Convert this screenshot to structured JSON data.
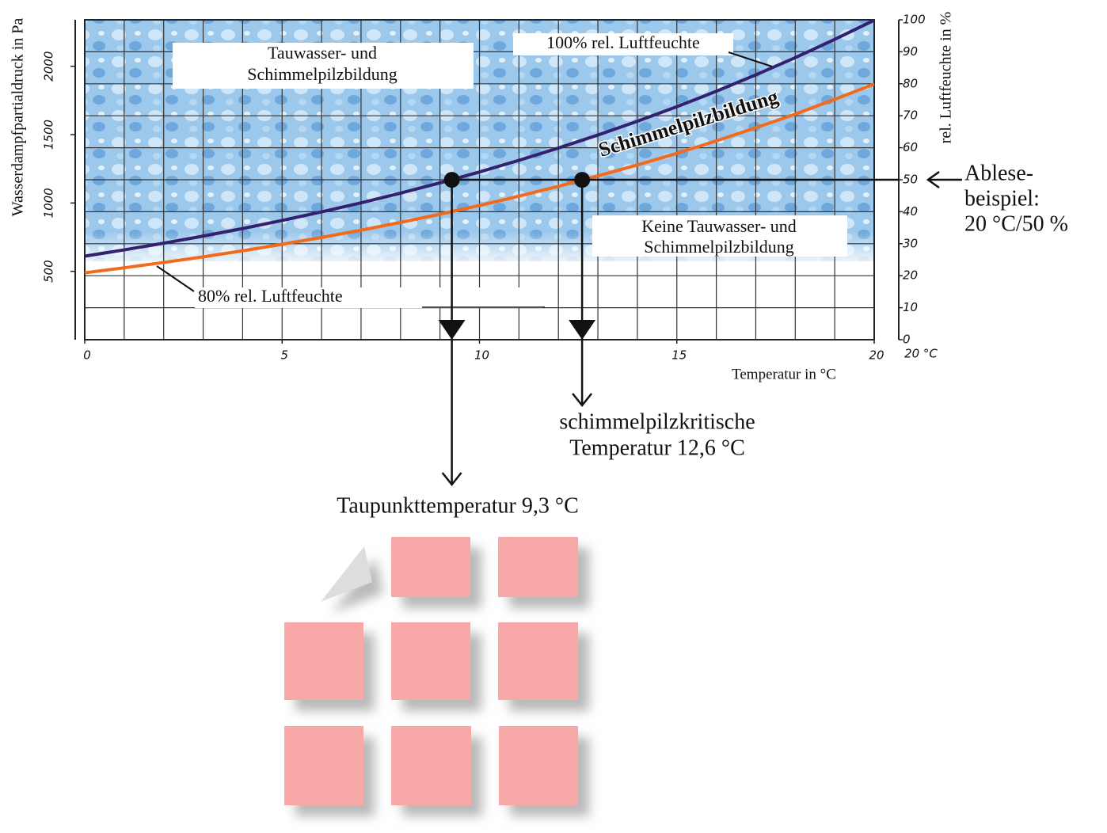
{
  "chart_data": {
    "type": "line",
    "x_label": "Temperatur in °C",
    "y_label": "Wasserdampfpartialdruck in Pa",
    "y2_label": "rel. Luftfeuchte in %",
    "x_end_label": "20 °C",
    "x": [
      0,
      1,
      2,
      3,
      4,
      5,
      6,
      7,
      8,
      9,
      10,
      11,
      12,
      13,
      14,
      15,
      16,
      17,
      18,
      19,
      20
    ],
    "series": [
      {
        "name": "100% rel. Luftfeuchte",
        "color": "#33206e",
        "values": [
          611,
          657,
          706,
          758,
          813,
          872,
          935,
          1001,
          1072,
          1147,
          1227,
          1312,
          1402,
          1497,
          1598,
          1704,
          1817,
          1937,
          2063,
          2197,
          2337
        ]
      },
      {
        "name": "80% rel. Luftfeuchte",
        "color": "#f26a1b",
        "values": [
          489,
          526,
          565,
          606,
          650,
          698,
          748,
          801,
          858,
          918,
          982,
          1050,
          1122,
          1198,
          1278,
          1363,
          1454,
          1550,
          1650,
          1758,
          1870
        ]
      }
    ],
    "xlim": [
      0,
      20
    ],
    "xticks": [
      0,
      5,
      10,
      15,
      20
    ],
    "ylim": [
      0,
      2340
    ],
    "yticks": [
      500,
      1000,
      1500,
      2000
    ],
    "y2lim": [
      0,
      100
    ],
    "y2ticks": [
      0,
      10,
      20,
      30,
      40,
      50,
      60,
      70,
      80,
      90,
      100
    ],
    "grid": true,
    "region_labels": {
      "above": [
        "Tauwasser- und",
        "Schimmelpilzbildung"
      ],
      "below": [
        "Keine Tauwasser- und",
        "Schimmelpilzbildung"
      ],
      "band": "Schimmelpilzbildung"
    },
    "reading_example": {
      "label": [
        "Ablese-",
        "beispiel:",
        "20 °C/50 %"
      ],
      "y2": 50,
      "points": [
        {
          "x": 9.3,
          "y": 1169,
          "label": [
            "Taupunkttemperatur 9,3 °C"
          ]
        },
        {
          "x": 12.6,
          "y": 1169,
          "label": [
            "schimmelpilzkritische",
            "Temperatur 12,6 °C"
          ]
        }
      ]
    }
  }
}
